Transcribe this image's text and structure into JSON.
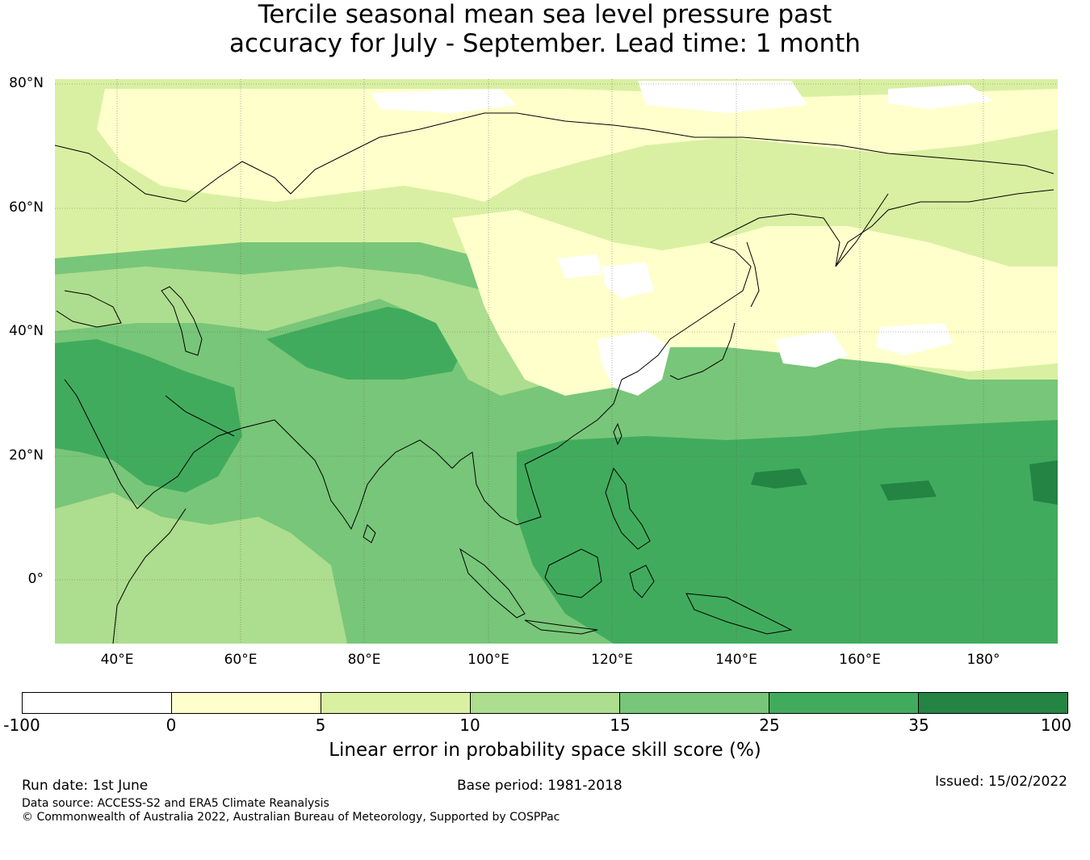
{
  "title": {
    "line1": "Tercile seasonal mean sea level pressure past",
    "line2": "accuracy for July - September. Lead time: 1 month"
  },
  "map": {
    "lat_labels": [
      "80°N",
      "60°N",
      "40°N",
      "20°N",
      "0°"
    ],
    "lon_labels": [
      "40°E",
      "60°E",
      "80°E",
      "100°E",
      "120°E",
      "140°E",
      "160°E",
      "180°"
    ],
    "extent": {
      "lon_min": 30,
      "lon_max": 192,
      "lat_min": -10,
      "lat_max": 81
    },
    "colors": {
      "ocean_high": "#41ab5d",
      "tropical_mid": "#78c679",
      "subtropical": "#addd8e",
      "northern": "#d9f0a3",
      "pale": "#ffffcc",
      "darkest": "#238443",
      "white": "#ffffff"
    }
  },
  "colorbar": {
    "ticks": [
      "-100",
      "0",
      "5",
      "10",
      "15",
      "25",
      "35",
      "100"
    ],
    "colors": [
      "#ffffff",
      "#ffffcc",
      "#d9f0a3",
      "#addd8e",
      "#78c679",
      "#41ab5d",
      "#238443"
    ],
    "label": "Linear error in probability space skill score (%)"
  },
  "footer": {
    "run_date": "Run date: 1st June",
    "base_period": "Base period: 1981-2018",
    "issued": "Issued: 15/02/2022",
    "data_source": "Data source: ACCESS-S2 and ERA5 Climate Reanalysis",
    "copyright": "© Commonwealth of Australia 2022, Australian Bureau of Meteorology, Supported by COSPPac"
  }
}
